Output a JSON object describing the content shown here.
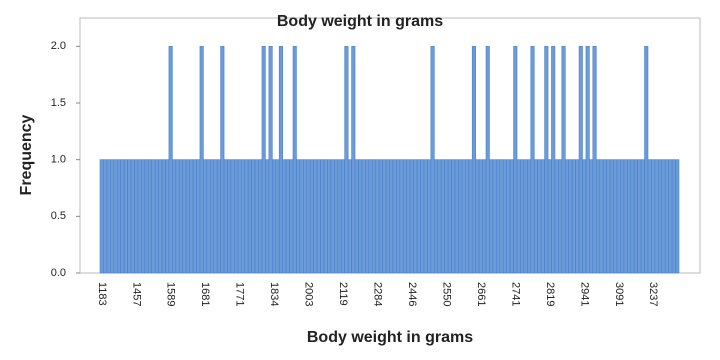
{
  "chart_data": {
    "type": "bar",
    "title": "Body weight in grams",
    "x_label": "Body weight in grams",
    "y_label": "Frequency",
    "categories": [
      "1183",
      null,
      null,
      null,
      null,
      null,
      null,
      null,
      null,
      null,
      "1457",
      null,
      null,
      null,
      null,
      null,
      null,
      null,
      null,
      null,
      "1589",
      null,
      null,
      null,
      null,
      null,
      null,
      null,
      null,
      null,
      "1681",
      null,
      null,
      null,
      null,
      null,
      null,
      null,
      null,
      null,
      "1771",
      null,
      null,
      null,
      null,
      null,
      null,
      null,
      null,
      null,
      "1834",
      null,
      null,
      null,
      null,
      null,
      null,
      null,
      null,
      null,
      "2003",
      null,
      null,
      null,
      null,
      null,
      null,
      null,
      null,
      null,
      "2119",
      null,
      null,
      null,
      null,
      null,
      null,
      null,
      null,
      null,
      "2284",
      null,
      null,
      null,
      null,
      null,
      null,
      null,
      null,
      null,
      "2446",
      null,
      null,
      null,
      null,
      null,
      null,
      null,
      null,
      null,
      "2550",
      null,
      null,
      null,
      null,
      null,
      null,
      null,
      null,
      null,
      "2661",
      null,
      null,
      null,
      null,
      null,
      null,
      null,
      null,
      null,
      "2741",
      null,
      null,
      null,
      null,
      null,
      null,
      null,
      null,
      null,
      "2819",
      null,
      null,
      null,
      null,
      null,
      null,
      null,
      null,
      null,
      "2941",
      null,
      null,
      null,
      null,
      null,
      null,
      null,
      null,
      null,
      "3091",
      null,
      null,
      null,
      null,
      null,
      null,
      null,
      null,
      null,
      "3237",
      null,
      null,
      null,
      null,
      null,
      null,
      null
    ],
    "values": [
      1,
      1,
      1,
      1,
      1,
      1,
      1,
      1,
      1,
      1,
      1,
      1,
      1,
      1,
      1,
      1,
      1,
      1,
      1,
      1,
      2,
      1,
      1,
      1,
      1,
      1,
      1,
      1,
      1,
      2,
      1,
      1,
      1,
      1,
      1,
      2,
      1,
      1,
      1,
      1,
      1,
      1,
      1,
      1,
      1,
      1,
      1,
      2,
      1,
      2,
      1,
      1,
      2,
      1,
      1,
      1,
      2,
      1,
      1,
      1,
      1,
      1,
      1,
      1,
      1,
      1,
      1,
      1,
      1,
      1,
      1,
      2,
      1,
      2,
      1,
      1,
      1,
      1,
      1,
      1,
      1,
      1,
      1,
      1,
      1,
      1,
      1,
      1,
      1,
      1,
      1,
      1,
      1,
      1,
      1,
      1,
      2,
      1,
      1,
      1,
      1,
      1,
      1,
      1,
      1,
      1,
      1,
      1,
      2,
      1,
      1,
      1,
      2,
      1,
      1,
      1,
      1,
      1,
      1,
      1,
      2,
      1,
      1,
      1,
      1,
      2,
      1,
      1,
      1,
      2,
      1,
      2,
      1,
      1,
      2,
      1,
      1,
      1,
      1,
      2,
      1,
      2,
      1,
      2,
      1,
      1,
      1,
      1,
      1,
      1,
      1,
      1,
      1,
      1,
      1,
      1,
      1,
      1,
      2,
      1,
      1,
      1,
      1,
      1,
      1,
      1,
      1,
      1
    ],
    "color": "#6b9bd8",
    "edge_color": "#4a7fc8",
    "ylim": [
      0,
      2.25
    ],
    "yticks": [
      {
        "value": 0,
        "label": "0.0"
      },
      {
        "value": 0.5,
        "label": "0.5"
      },
      {
        "value": 1,
        "label": "1.0"
      },
      {
        "value": 1.5,
        "label": "1.5"
      },
      {
        "value": 2,
        "label": "2.0"
      }
    ]
  }
}
